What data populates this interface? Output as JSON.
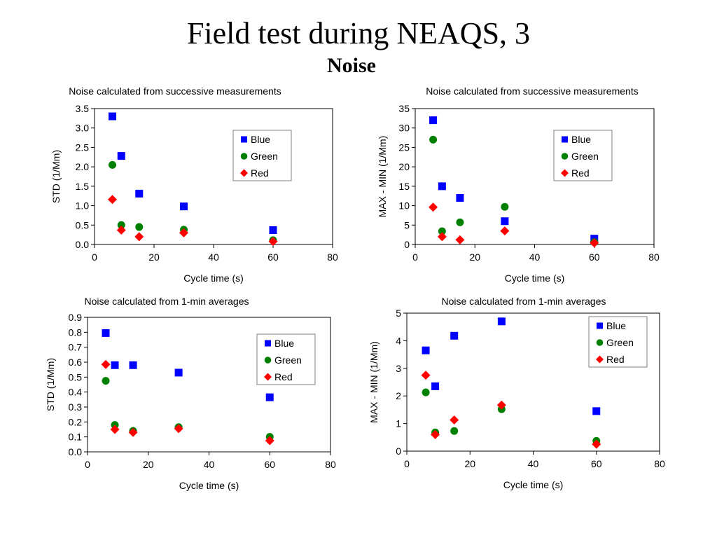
{
  "page": {
    "title": "Field test during NEAQS, 3",
    "subtitle": "Noise"
  },
  "colors": {
    "blue": "#0000ff",
    "green": "#008000",
    "red": "#ff0000"
  },
  "chart_data": [
    {
      "type": "scatter",
      "title": "Noise calculated from successive measurements",
      "xlabel": "Cycle time (s)",
      "ylabel": "STD (1/Mm)",
      "xlim": [
        0,
        80
      ],
      "ylim": [
        0,
        3.5
      ],
      "xticks": [
        "0",
        "20",
        "40",
        "60",
        "80"
      ],
      "yticks": [
        "0.0",
        "0.5",
        "1.0",
        "1.5",
        "2.0",
        "2.5",
        "3.0",
        "3.5"
      ],
      "grid": false,
      "legend": "upper-right",
      "series": [
        {
          "name": "Blue",
          "marker": "square",
          "x": [
            6,
            9,
            15,
            30,
            60
          ],
          "y": [
            3.3,
            2.28,
            1.31,
            0.98,
            0.37
          ]
        },
        {
          "name": "Green",
          "marker": "circle",
          "x": [
            6,
            9,
            15,
            30,
            60
          ],
          "y": [
            2.05,
            0.5,
            0.45,
            0.38,
            0.11
          ]
        },
        {
          "name": "Red",
          "marker": "diamond",
          "x": [
            6,
            9,
            15,
            30,
            60
          ],
          "y": [
            1.16,
            0.37,
            0.2,
            0.3,
            0.08
          ]
        }
      ]
    },
    {
      "type": "scatter",
      "title": "Noise calculated from successive measurements",
      "xlabel": "Cycle time (s)",
      "ylabel": "MAX - MIN (1/Mm)",
      "xlim": [
        0,
        80
      ],
      "ylim": [
        0,
        35
      ],
      "xticks": [
        "0",
        "20",
        "40",
        "60",
        "80"
      ],
      "yticks": [
        "0",
        "5",
        "10",
        "15",
        "20",
        "25",
        "30",
        "35"
      ],
      "grid": false,
      "legend": "upper-right",
      "series": [
        {
          "name": "Blue",
          "marker": "square",
          "x": [
            6,
            9,
            15,
            30,
            60
          ],
          "y": [
            32,
            15,
            12,
            6,
            1.5
          ]
        },
        {
          "name": "Green",
          "marker": "circle",
          "x": [
            6,
            9,
            15,
            30,
            60
          ],
          "y": [
            27,
            3.4,
            5.7,
            9.7,
            0.6
          ]
        },
        {
          "name": "Red",
          "marker": "diamond",
          "x": [
            6,
            9,
            15,
            30,
            60
          ],
          "y": [
            9.6,
            2,
            1.2,
            3.5,
            0.4
          ]
        }
      ]
    },
    {
      "type": "scatter",
      "title": "Noise calculated from 1-min averages",
      "xlabel": "Cycle time (s)",
      "ylabel": "STD (1/Mm)",
      "xlim": [
        0,
        80
      ],
      "ylim": [
        0,
        0.9
      ],
      "xticks": [
        "0",
        "20",
        "40",
        "60",
        "80"
      ],
      "yticks": [
        "0.0",
        "0.1",
        "0.2",
        "0.3",
        "0.4",
        "0.5",
        "0.6",
        "0.7",
        "0.8",
        "0.9"
      ],
      "grid": false,
      "legend": "upper-right",
      "series": [
        {
          "name": "Blue",
          "marker": "square",
          "x": [
            6,
            9,
            15,
            30,
            60
          ],
          "y": [
            0.795,
            0.58,
            0.58,
            0.53,
            0.365
          ]
        },
        {
          "name": "Green",
          "marker": "circle",
          "x": [
            6,
            9,
            15,
            30,
            60
          ],
          "y": [
            0.475,
            0.18,
            0.14,
            0.165,
            0.1
          ]
        },
        {
          "name": "Red",
          "marker": "diamond",
          "x": [
            6,
            9,
            15,
            30,
            60
          ],
          "y": [
            0.585,
            0.15,
            0.13,
            0.155,
            0.075
          ]
        }
      ]
    },
    {
      "type": "scatter",
      "title": "Noise calculated from 1-min averages",
      "xlabel": "Cycle time (s)",
      "ylabel": "MAX - MIN (1/Mm)",
      "xlim": [
        0,
        80
      ],
      "ylim": [
        0,
        5
      ],
      "xticks": [
        "0",
        "20",
        "40",
        "60",
        "80"
      ],
      "yticks": [
        "0",
        "1",
        "2",
        "3",
        "4",
        "5"
      ],
      "grid": false,
      "legend": "upper-right",
      "series": [
        {
          "name": "Blue",
          "marker": "square",
          "x": [
            6,
            9,
            15,
            30,
            60
          ],
          "y": [
            3.65,
            2.35,
            4.18,
            4.7,
            1.45
          ]
        },
        {
          "name": "Green",
          "marker": "circle",
          "x": [
            6,
            9,
            15,
            30,
            60
          ],
          "y": [
            2.13,
            0.68,
            0.73,
            1.52,
            0.37
          ]
        },
        {
          "name": "Red",
          "marker": "diamond",
          "x": [
            6,
            9,
            15,
            30,
            60
          ],
          "y": [
            2.75,
            0.6,
            1.13,
            1.67,
            0.25
          ]
        }
      ]
    }
  ]
}
